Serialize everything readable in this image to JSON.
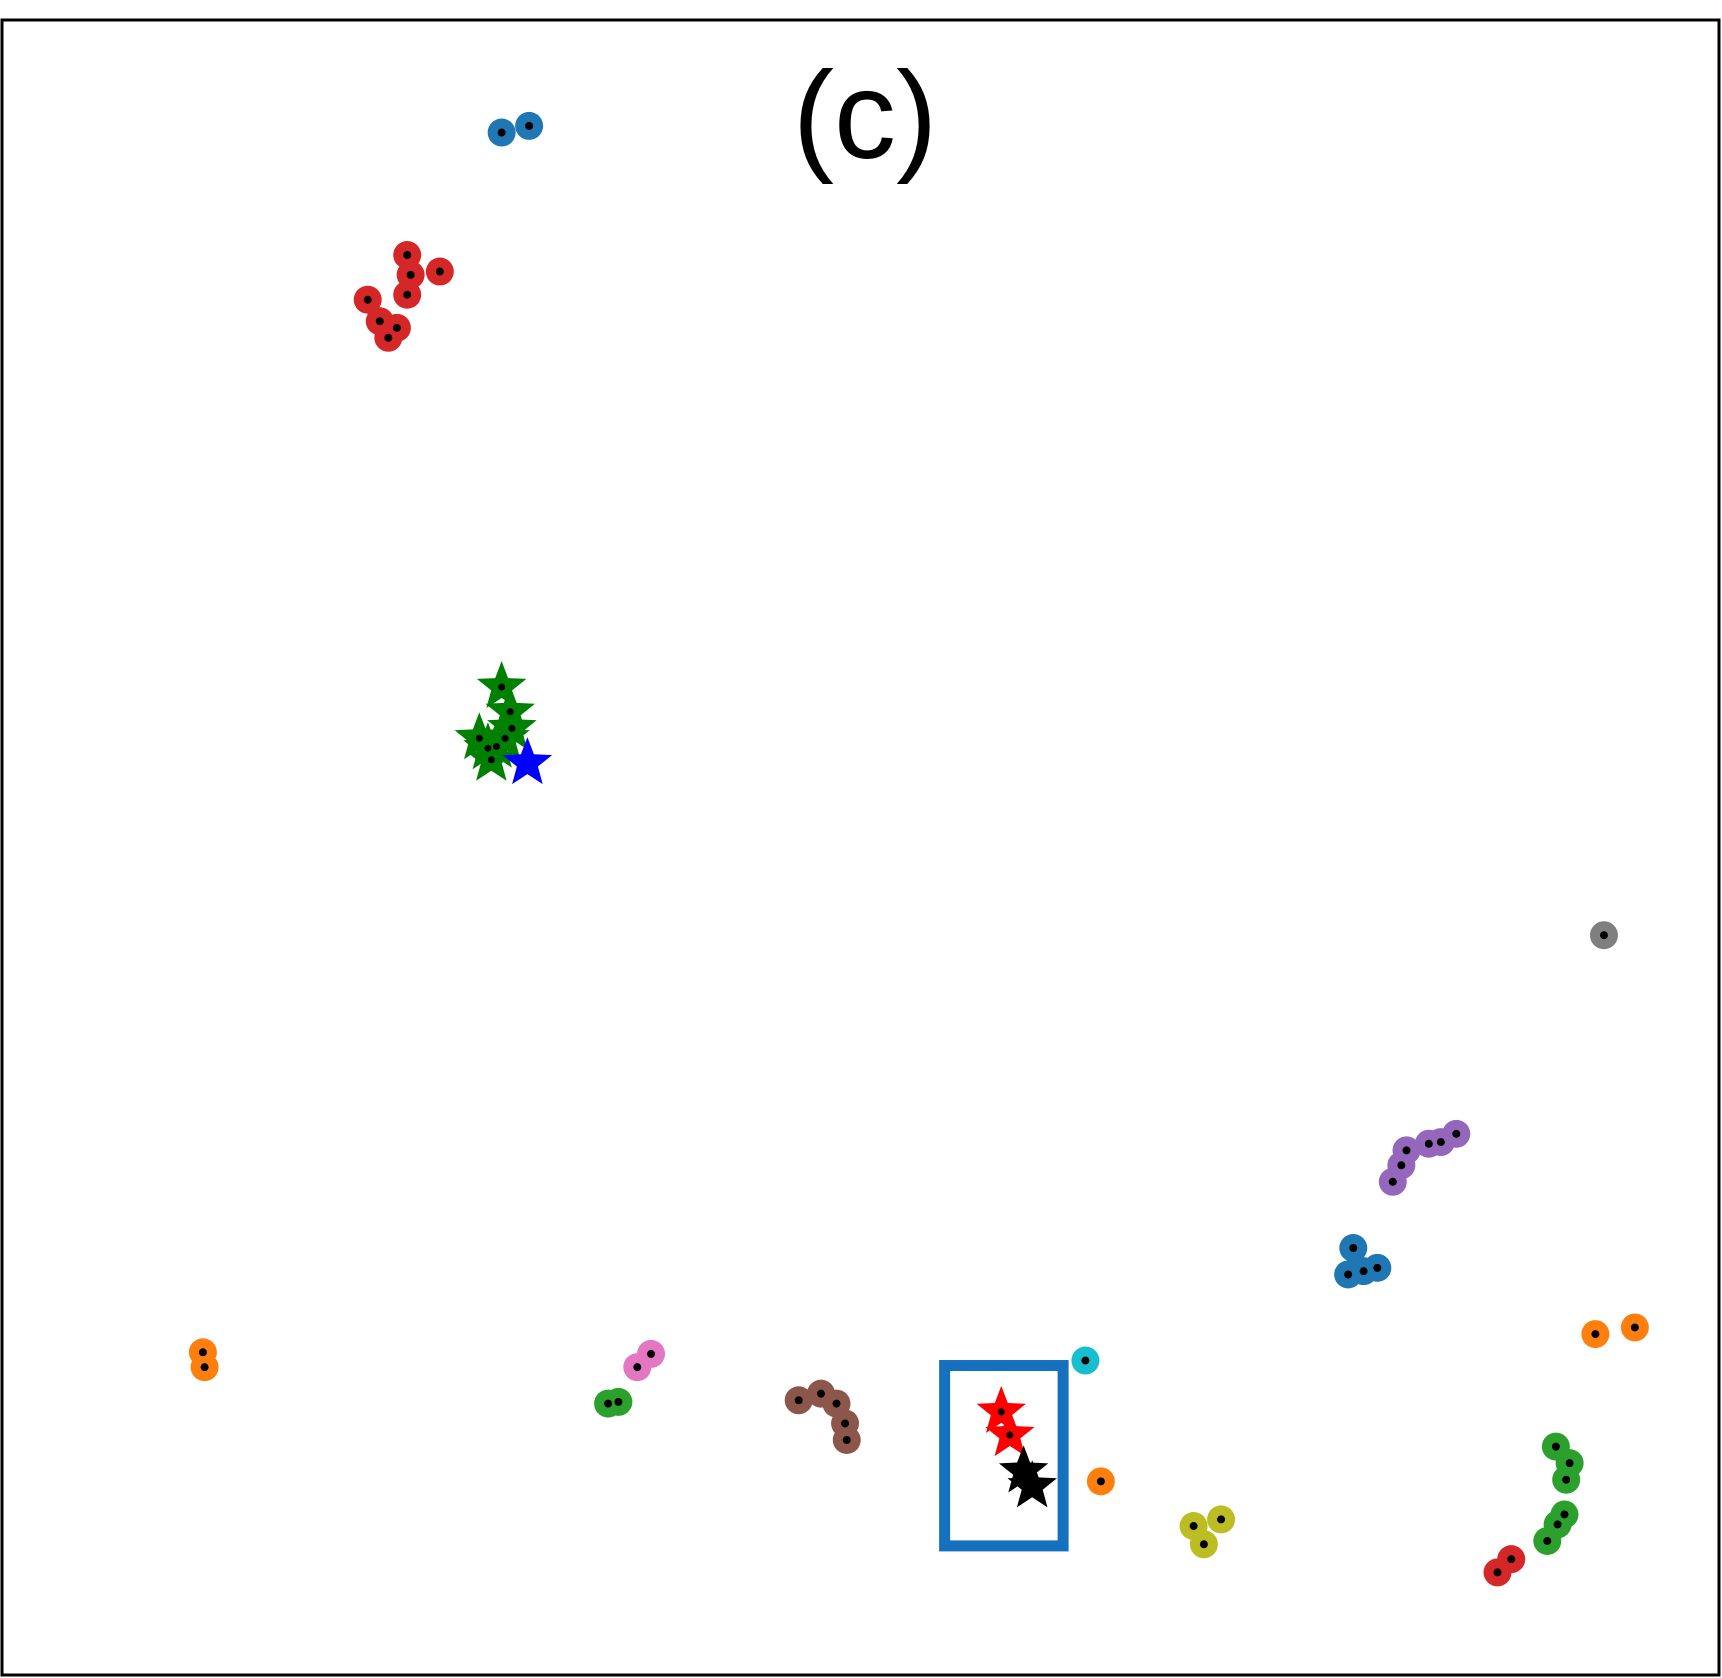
{
  "panel_label": "(c)",
  "chart_data": {
    "type": "scatter",
    "title": "",
    "xlabel": "",
    "ylabel": "",
    "xlim": [
      0,
      1
    ],
    "ylim": [
      0,
      1
    ],
    "axes_visible": false,
    "grid": false,
    "legend": "none",
    "highlight_box": {
      "color": "#1570be",
      "x_range": [
        0.549,
        0.618
      ],
      "y_range": [
        0.078,
        0.187
      ]
    },
    "circle_groups": [
      {
        "color": "#1f77b4",
        "points": [
          [
            0.291,
            0.932
          ],
          [
            0.307,
            0.936
          ]
        ]
      },
      {
        "color": "#d62728",
        "points": [
          [
            0.213,
            0.831
          ],
          [
            0.22,
            0.818
          ],
          [
            0.225,
            0.808
          ],
          [
            0.23,
            0.814
          ],
          [
            0.236,
            0.834
          ],
          [
            0.238,
            0.846
          ],
          [
            0.236,
            0.858
          ],
          [
            0.255,
            0.848
          ]
        ]
      },
      {
        "color": "#7f7f7f",
        "points": [
          [
            0.933,
            0.447
          ]
        ]
      },
      {
        "color": "#9467bd",
        "points": [
          [
            0.81,
            0.298
          ],
          [
            0.815,
            0.308
          ],
          [
            0.818,
            0.317
          ],
          [
            0.831,
            0.321
          ],
          [
            0.838,
            0.322
          ],
          [
            0.847,
            0.327
          ]
        ]
      },
      {
        "color": "#1f77b4",
        "points": [
          [
            0.787,
            0.258
          ],
          [
            0.784,
            0.242
          ],
          [
            0.793,
            0.244
          ],
          [
            0.801,
            0.246
          ]
        ]
      },
      {
        "color": "#ff7f0e",
        "points": [
          [
            0.928,
            0.206
          ],
          [
            0.951,
            0.21
          ]
        ]
      },
      {
        "color": "#ff7f0e",
        "points": [
          [
            0.117,
            0.195
          ],
          [
            0.118,
            0.186
          ]
        ]
      },
      {
        "color": "#e377c2",
        "points": [
          [
            0.37,
            0.186
          ],
          [
            0.378,
            0.194
          ]
        ]
      },
      {
        "color": "#2ca02c",
        "points": [
          [
            0.353,
            0.164
          ],
          [
            0.359,
            0.165
          ]
        ]
      },
      {
        "color": "#8c564b",
        "points": [
          [
            0.464,
            0.166
          ],
          [
            0.477,
            0.17
          ],
          [
            0.486,
            0.164
          ],
          [
            0.491,
            0.152
          ],
          [
            0.492,
            0.142
          ]
        ]
      },
      {
        "color": "#17becf",
        "points": [
          [
            0.631,
            0.19
          ]
        ]
      },
      {
        "color": "#ff7f0e",
        "points": [
          [
            0.64,
            0.117
          ]
        ]
      },
      {
        "color": "#bcbd22",
        "points": [
          [
            0.694,
            0.09
          ],
          [
            0.7,
            0.079
          ],
          [
            0.71,
            0.094
          ]
        ]
      },
      {
        "color": "#2ca02c",
        "points": [
          [
            0.905,
            0.138
          ],
          [
            0.913,
            0.128
          ],
          [
            0.911,
            0.118
          ],
          [
            0.9,
            0.081
          ],
          [
            0.906,
            0.091
          ],
          [
            0.91,
            0.097
          ]
        ]
      },
      {
        "color": "#d62728",
        "points": [
          [
            0.871,
            0.062
          ],
          [
            0.879,
            0.07
          ]
        ]
      }
    ],
    "star_groups": [
      {
        "color": "#008000",
        "points": [
          [
            0.291,
            0.597
          ],
          [
            0.296,
            0.582
          ],
          [
            0.293,
            0.566
          ],
          [
            0.283,
            0.56
          ],
          [
            0.278,
            0.566
          ],
          [
            0.285,
            0.553
          ],
          [
            0.288,
            0.561
          ],
          [
            0.297,
            0.572
          ]
        ]
      },
      {
        "color": "#0000ff",
        "points": [
          [
            0.306,
            0.551
          ]
        ]
      },
      {
        "color": "#ff0000",
        "points": [
          [
            0.582,
            0.159
          ],
          [
            0.587,
            0.145
          ]
        ]
      },
      {
        "color": "#000000",
        "points": [
          [
            0.595,
            0.123
          ],
          [
            0.6,
            0.114
          ]
        ]
      }
    ]
  }
}
